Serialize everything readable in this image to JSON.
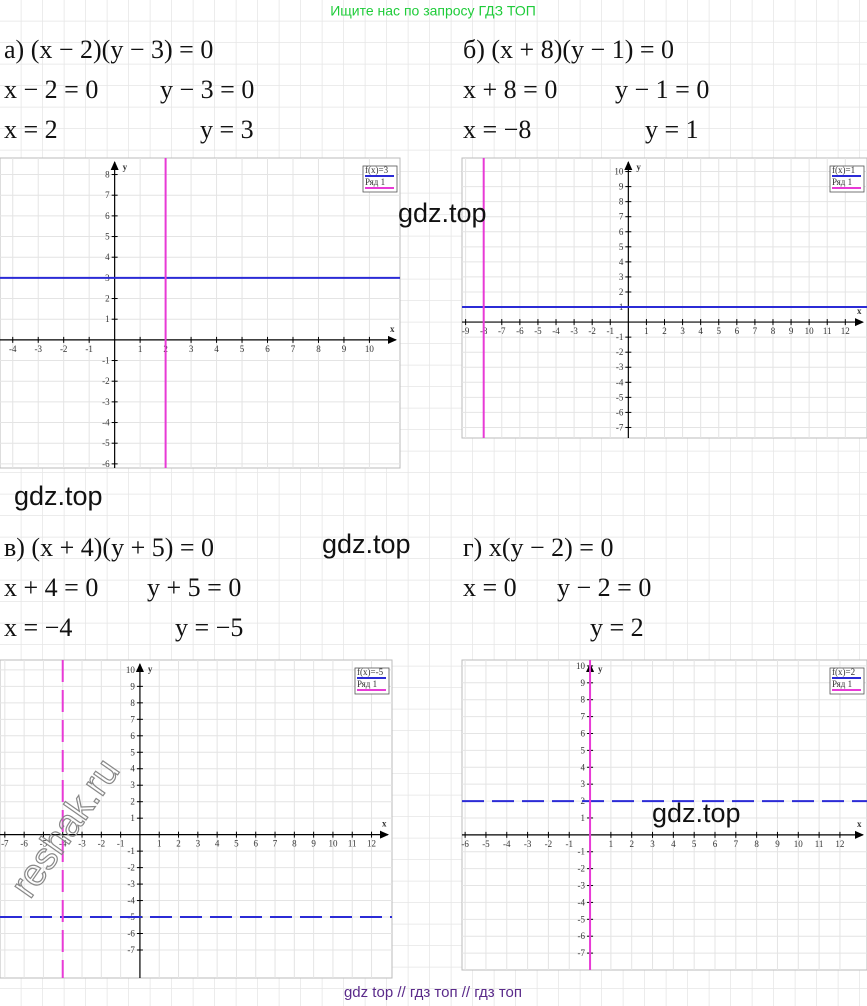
{
  "header": {
    "text": "Ищите нас по запросу ГДЗ ТОП"
  },
  "problems": [
    {
      "equation": "а) (x − 2)(y − 3) = 0",
      "steps": [
        {
          "left": "x − 2 = 0",
          "right": "y − 3 = 0"
        },
        {
          "left": "x = 2",
          "right": "y = 3"
        }
      ],
      "graph": {
        "x_label": "x",
        "y_label": "y",
        "xlim": [
          -4.5,
          11.2
        ],
        "ylim": [
          -6.2,
          8.8
        ],
        "xticks": [
          -4,
          -3,
          -2,
          -1,
          1,
          2,
          3,
          4,
          5,
          6,
          7,
          8,
          9,
          10
        ],
        "yticks": [
          -6,
          -5,
          -4,
          -3,
          -2,
          -1,
          1,
          2,
          3,
          4,
          5,
          6,
          7,
          8
        ],
        "lines": [
          {
            "name": "f(x)=3",
            "color": "#2b2bd6",
            "y": 3,
            "dashed": false
          },
          {
            "name": "Ряд 1",
            "color": "#e83ad6",
            "x": 2,
            "dashed": false
          }
        ]
      }
    },
    {
      "equation": "б) (x + 8)(y − 1) = 0",
      "steps": [
        {
          "left": "x + 8 = 0",
          "right": "y − 1 = 0"
        },
        {
          "left": "x = −8",
          "right": "y = 1"
        }
      ],
      "graph": {
        "x_label": "x",
        "y_label": "y",
        "xlim": [
          -9.2,
          13.2
        ],
        "ylim": [
          -7.7,
          10.9
        ],
        "xticks": [
          -9,
          -8,
          -7,
          -6,
          -5,
          -4,
          -3,
          -2,
          -1,
          1,
          2,
          3,
          4,
          5,
          6,
          7,
          8,
          9,
          10,
          11,
          12
        ],
        "yticks": [
          -7,
          -6,
          -5,
          -4,
          -3,
          -2,
          -1,
          1,
          2,
          3,
          4,
          5,
          6,
          7,
          8,
          9,
          10
        ],
        "lines": [
          {
            "name": "f(x)=1",
            "color": "#2b2bd6",
            "y": 1,
            "dashed": false
          },
          {
            "name": "Ряд 1",
            "color": "#e83ad6",
            "x": -8,
            "dashed": false
          }
        ]
      }
    },
    {
      "equation": "в) (x + 4)(y + 5) = 0",
      "steps": [
        {
          "left": "x + 4 = 0",
          "right": "y + 5 = 0"
        },
        {
          "left": "x = −4",
          "right": "y = −5"
        }
      ],
      "graph": {
        "x_label": "x",
        "y_label": "y",
        "xlim": [
          -7.25,
          13.06
        ],
        "ylim": [
          -8.7,
          10.6
        ],
        "xticks": [
          -7,
          -6,
          -5,
          -4,
          -3,
          -2,
          -1,
          1,
          2,
          3,
          4,
          5,
          6,
          7,
          8,
          9,
          10,
          11,
          12
        ],
        "yticks": [
          -7,
          -6,
          -5,
          -4,
          -3,
          -2,
          -1,
          1,
          2,
          3,
          4,
          5,
          6,
          7,
          8,
          9,
          10
        ],
        "lines": [
          {
            "name": "f(x)=-5",
            "color": "#2b2bd6",
            "y": -5,
            "dashed": true
          },
          {
            "name": "Ряд 1",
            "color": "#e83ad6",
            "x": -4,
            "dashed": true
          }
        ]
      }
    },
    {
      "equation": "г) x(y − 2) = 0",
      "steps": [
        {
          "left": "x = 0",
          "right": "y − 2 = 0"
        },
        {
          "right": "y = 2"
        }
      ],
      "graph": {
        "x_label": "x",
        "y_label": "y",
        "xlim": [
          -6.15,
          13.3
        ],
        "ylim": [
          -8.0,
          10.35
        ],
        "xticks": [
          -6,
          -5,
          -4,
          -3,
          -2,
          -1,
          1,
          2,
          3,
          4,
          5,
          6,
          7,
          8,
          9,
          10,
          11,
          12
        ],
        "yticks": [
          -7,
          -6,
          -5,
          -4,
          -3,
          -2,
          -1,
          1,
          2,
          3,
          4,
          5,
          6,
          7,
          8,
          9,
          10
        ],
        "lines": [
          {
            "name": "f(x)=2",
            "color": "#2b2bd6",
            "y": 2,
            "dashed": true
          },
          {
            "name": "Ряд 1",
            "color": "#e83ad6",
            "x": 0,
            "dashed": false
          }
        ]
      }
    }
  ],
  "watermarks": [
    "gdz.top",
    "gdz.top",
    "gdz.top",
    "gdz.top"
  ],
  "stamp": "reshak.ru",
  "footer": {
    "text": "gdz top  //  гдз топ  //  гдз топ"
  }
}
